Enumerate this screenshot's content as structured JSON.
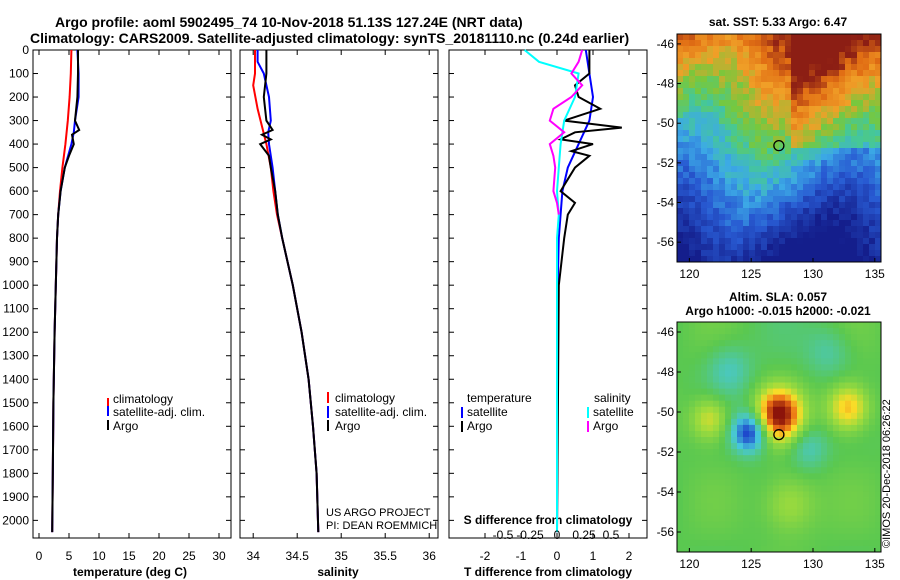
{
  "header": {
    "line1": "Argo profile: aoml 5902495_74 10-Nov-2018 51.13S 127.24E (NRT data)",
    "line2": "Climatology: CARS2009. Satellite-adjusted climatology: synTS_20181110.nc (0.24d earlier)"
  },
  "colors": {
    "climatology": "#ff0000",
    "satellite": "#0000ff",
    "argo": "#000000",
    "sat_salinity": "#00ffff",
    "argo_salinity_diff": "#ff00ff"
  },
  "chart_data": [
    {
      "type": "line",
      "xlabel": "temperature (deg C)",
      "ylim": [
        2075,
        0
      ],
      "xlim": [
        -1,
        32
      ],
      "yticks": [
        0,
        100,
        200,
        300,
        400,
        500,
        600,
        700,
        800,
        900,
        1000,
        1100,
        1200,
        1300,
        1400,
        1500,
        1600,
        1700,
        1800,
        1900,
        2000
      ],
      "ytick_labels": [
        "0",
        "100",
        "200",
        "300",
        "400",
        "500",
        "600",
        "700",
        "800",
        "900",
        "1000",
        "1100",
        "1200",
        "1300",
        "1400",
        "1500",
        "1600",
        "1700",
        "1800",
        "1900",
        "2000"
      ],
      "xticks": [
        0,
        5,
        10,
        15,
        20,
        25,
        30
      ],
      "xtick_labels": [
        "0",
        "5",
        "10",
        "15",
        "20",
        "25",
        "30"
      ],
      "legend": [
        "climatology",
        "satellite-adj. clim.",
        "Argo"
      ],
      "series": [
        {
          "name": "climatology",
          "color": "#ff0000",
          "depth": [
            0,
            100,
            200,
            300,
            400,
            500,
            600,
            700,
            800,
            1000,
            1200,
            1500,
            1800,
            2050
          ],
          "values": [
            5.4,
            5.3,
            5.1,
            4.8,
            4.4,
            3.9,
            3.5,
            3.2,
            3.0,
            2.8,
            2.6,
            2.4,
            2.3,
            2.2
          ]
        },
        {
          "name": "satellite-adj. clim.",
          "color": "#0000ff",
          "depth": [
            0,
            100,
            200,
            300,
            350,
            400,
            500,
            600,
            700,
            800,
            1000,
            1200,
            1500,
            1800,
            2050
          ],
          "values": [
            6.4,
            6.6,
            6.6,
            6.0,
            5.8,
            5.4,
            4.3,
            3.6,
            3.2,
            3.0,
            2.8,
            2.6,
            2.4,
            2.3,
            2.2
          ]
        },
        {
          "name": "Argo",
          "color": "#000000",
          "depth": [
            0,
            100,
            200,
            300,
            340,
            360,
            400,
            450,
            500,
            600,
            700,
            800,
            1000,
            1200,
            1500,
            1800,
            2050
          ],
          "values": [
            6.5,
            6.5,
            6.4,
            6.0,
            6.7,
            5.5,
            5.8,
            5.0,
            4.3,
            3.6,
            3.2,
            3.0,
            2.8,
            2.6,
            2.4,
            2.3,
            2.2
          ]
        }
      ]
    },
    {
      "type": "line",
      "xlabel": "salinity",
      "ylim": [
        2075,
        0
      ],
      "xlim": [
        33.85,
        36.1
      ],
      "xticks": [
        34,
        34.5,
        35,
        35.5,
        36
      ],
      "xtick_labels": [
        "34",
        "34.5",
        "35",
        "35.5",
        "36"
      ],
      "legend": [
        "climatology",
        "satellite-adj. clim.",
        "Argo"
      ],
      "annotations": [
        "US ARGO PROJECT",
        "PI: DEAN ROEMMICH"
      ],
      "series": [
        {
          "name": "climatology",
          "color": "#ff0000",
          "depth": [
            0,
            100,
            150,
            250,
            400,
            500,
            600,
            700,
            800,
            1000,
            1200,
            1400,
            1600,
            1800,
            2050
          ],
          "values": [
            34.02,
            34.02,
            34.0,
            34.05,
            34.15,
            34.2,
            34.23,
            34.27,
            34.33,
            34.45,
            34.55,
            34.63,
            34.68,
            34.72,
            34.74
          ]
        },
        {
          "name": "satellite-adj. clim.",
          "color": "#0000ff",
          "depth": [
            0,
            50,
            100,
            200,
            300,
            350,
            400,
            500,
            600,
            700,
            800,
            1000,
            1200,
            1400,
            1600,
            1800,
            2050
          ],
          "values": [
            34.05,
            34.05,
            34.12,
            34.18,
            34.2,
            34.17,
            34.18,
            34.22,
            34.25,
            34.28,
            34.33,
            34.45,
            34.55,
            34.63,
            34.68,
            34.72,
            34.74
          ]
        },
        {
          "name": "Argo",
          "color": "#000000",
          "depth": [
            0,
            100,
            200,
            300,
            340,
            360,
            380,
            400,
            450,
            500,
            600,
            700,
            800,
            1000,
            1200,
            1400,
            1600,
            1800,
            2050
          ],
          "values": [
            34.15,
            34.15,
            34.12,
            34.15,
            34.22,
            34.1,
            34.2,
            34.08,
            34.18,
            34.2,
            34.25,
            34.28,
            34.33,
            34.45,
            34.55,
            34.63,
            34.68,
            34.72,
            34.74
          ]
        }
      ]
    },
    {
      "type": "line",
      "xlabel": "T difference from climatology",
      "title": "S difference from climatology",
      "ylim": [
        2075,
        0
      ],
      "xlim": [
        -3.0,
        2.5
      ],
      "xticks": [
        -2,
        -1,
        0,
        1,
        2
      ],
      "xtick_labels": [
        "-2",
        "-1",
        "0",
        "1",
        "2"
      ],
      "s_ticks": [
        -0.5,
        -0.25,
        0,
        0.25,
        0.5
      ],
      "s_tick_labels": [
        "-0.5",
        "-0.25",
        "0",
        "0.25",
        "0.5"
      ],
      "legend": [
        "temperature",
        "satellite",
        "Argo",
        "salinity",
        "satellite",
        "Argo"
      ],
      "series": [
        {
          "name": "satellite",
          "group": "temperature",
          "color": "#0000ff",
          "depth": [
            0,
            100,
            200,
            300,
            400,
            500,
            600,
            700,
            800,
            1000,
            2050
          ],
          "values": [
            0.8,
            0.9,
            1.0,
            0.9,
            0.6,
            0.3,
            0.15,
            0.1,
            0.05,
            0.02,
            0.0
          ]
        },
        {
          "name": "Argo",
          "group": "temperature",
          "color": "#000000",
          "depth": [
            0,
            100,
            150,
            200,
            250,
            300,
            330,
            350,
            380,
            400,
            430,
            450,
            500,
            550,
            600,
            650,
            700,
            800,
            1000,
            2050
          ],
          "values": [
            0.9,
            0.9,
            0.5,
            0.6,
            1.2,
            0.2,
            1.8,
            0.5,
            0.1,
            1.0,
            0.4,
            0.9,
            0.5,
            0.3,
            0.1,
            0.5,
            0.3,
            0.2,
            0.05,
            0.0
          ]
        },
        {
          "name": "satellite",
          "group": "salinity",
          "color": "#00ffff",
          "depth": [
            0,
            50,
            100,
            200,
            300,
            400,
            500,
            600,
            700,
            800,
            1000,
            2050
          ],
          "values": [
            -0.9,
            -0.5,
            0.6,
            0.5,
            0.2,
            0.1,
            0.05,
            0.0,
            0.05,
            0.0,
            0.0,
            0.0
          ]
        },
        {
          "name": "Argo",
          "group": "salinity",
          "color": "#ff00ff",
          "depth": [
            0,
            50,
            100,
            150,
            200,
            250,
            300,
            350,
            400,
            450,
            500,
            600,
            650,
            700
          ],
          "values": [
            0.7,
            0.6,
            0.4,
            0.7,
            0.4,
            -0.1,
            -0.2,
            0.2,
            -0.2,
            -0.1,
            -0.05,
            -0.1,
            0.0,
            0.05
          ]
        }
      ]
    },
    {
      "type": "heatmap",
      "title": "sat. SST: 5.33 Argo: 6.47",
      "xlim": [
        119,
        135.5
      ],
      "ylim": [
        -57,
        -45.5
      ],
      "xticks": [
        120,
        125,
        130,
        135
      ],
      "xtick_labels": [
        "120",
        "125",
        "130",
        "135"
      ],
      "yticks": [
        -46,
        -48,
        -50,
        -52,
        -54,
        -56
      ],
      "ytick_labels": [
        "-46",
        "-48",
        "-50",
        "-52",
        "-54",
        "-56"
      ],
      "marker": {
        "lon": 127.24,
        "lat": -51.13
      }
    },
    {
      "type": "heatmap",
      "title": "Altim. SLA: 0.057",
      "subtitle": "Argo h1000: -0.015 h2000: -0.021",
      "xlim": [
        119,
        135.5
      ],
      "ylim": [
        -57,
        -45.5
      ],
      "xticks": [
        120,
        125,
        130,
        135
      ],
      "xtick_labels": [
        "120",
        "125",
        "130",
        "135"
      ],
      "yticks": [
        -46,
        -48,
        -50,
        -52,
        -54,
        -56
      ],
      "ytick_labels": [
        "-46",
        "-48",
        "-50",
        "-52",
        "-54",
        "-56"
      ],
      "marker": {
        "lon": 127.24,
        "lat": -51.13
      }
    }
  ],
  "footer": {
    "watermark": "©IMOS 20-Dec-2018 06:26:22"
  }
}
